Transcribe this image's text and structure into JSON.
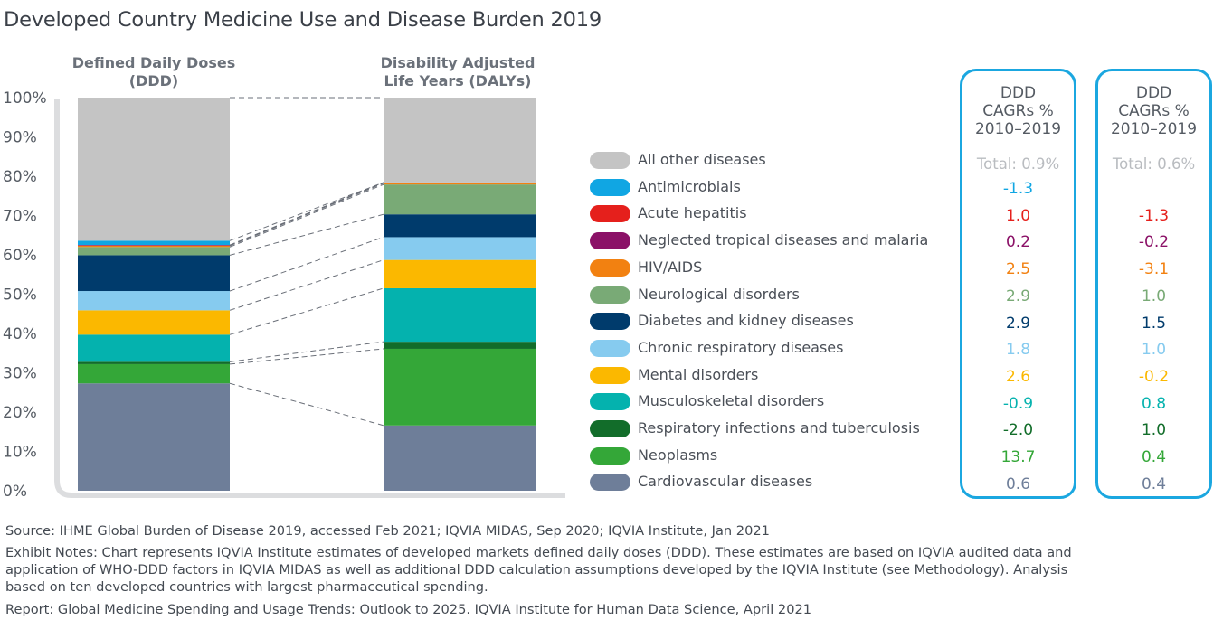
{
  "title": "Developed Country Medicine Use and Disease Burden 2019",
  "chart_data": {
    "type": "bar",
    "stacked": true,
    "normalized": true,
    "categories": [
      "Defined Daily Doses (DDD)",
      "Disability Adjusted Life Years (DALYs)"
    ],
    "ddd_header": [
      "Defined Daily Doses",
      "(DDD)"
    ],
    "daly_header": [
      "Disability Adjusted",
      "Life Years (DALYs)"
    ],
    "ylim": [
      0,
      100
    ],
    "yticks": [
      "0%",
      "10%",
      "20%",
      "30%",
      "40%",
      "50%",
      "60%",
      "70%",
      "80%",
      "90%",
      "100%"
    ],
    "series": [
      {
        "name": "Cardiovascular diseases",
        "color": "#6e7e99",
        "values": [
          27.3,
          16.6
        ]
      },
      {
        "name": "Neoplasms",
        "color": "#34a738",
        "values": [
          4.9,
          19.5
        ]
      },
      {
        "name": "Respiratory infections and tuberculosis",
        "color": "#126d2a",
        "values": [
          0.6,
          1.8
        ]
      },
      {
        "name": "Musculoskeletal disorders",
        "color": "#04b2ae",
        "values": [
          6.9,
          13.6
        ]
      },
      {
        "name": "Mental disorders",
        "color": "#fbb800",
        "values": [
          6.2,
          7.2
        ]
      },
      {
        "name": "Chronic respiratory diseases",
        "color": "#86cbef",
        "values": [
          4.9,
          5.8
        ]
      },
      {
        "name": "Diabetes and kidney diseases",
        "color": "#003b6c",
        "values": [
          9.1,
          5.8
        ]
      },
      {
        "name": "Neurological disorders",
        "color": "#79aa76",
        "values": [
          2.1,
          7.6
        ]
      },
      {
        "name": "HIV/AIDS",
        "color": "#f28111",
        "values": [
          0.3,
          0.3
        ]
      },
      {
        "name": "Neglected tropical diseases and malaria",
        "color": "#8b1167",
        "values": [
          0.1,
          0.1
        ]
      },
      {
        "name": "Acute hepatitis",
        "color": "#e5201c",
        "values": [
          0.1,
          0.1
        ]
      },
      {
        "name": "Antimicrobials",
        "color": "#10a6e3",
        "values": [
          1.1,
          0
        ]
      },
      {
        "name": "All other diseases",
        "color": "#c4c4c4",
        "values": [
          36.4,
          21.6
        ]
      }
    ]
  },
  "legend_order": [
    "All other diseases",
    "Antimicrobials",
    "Acute hepatitis",
    "Neglected tropical diseases and malaria",
    "HIV/AIDS",
    "Neurological disorders",
    "Diabetes and kidney diseases",
    "Chronic respiratory diseases",
    "Mental disorders",
    "Musculoskeletal disorders",
    "Respiratory infections and tuberculosis",
    "Neoplasms",
    "Cardiovascular diseases"
  ],
  "panels": [
    {
      "header": [
        "DDD",
        "CAGRs %",
        "2010–2019"
      ],
      "total": "Total: 0.9%",
      "values": [
        "-1.3",
        "1.0",
        "0.2",
        "2.5",
        "2.9",
        "2.9",
        "1.8",
        "2.6",
        "-0.9",
        "-2.0",
        "13.7",
        "0.6"
      ]
    },
    {
      "header": [
        "DDD",
        "CAGRs %",
        "2010–2019"
      ],
      "total": "Total: 0.6%",
      "values": [
        "",
        "-1.3",
        "-0.2",
        "-3.1",
        "1.0",
        "1.5",
        "1.0",
        "-0.2",
        "0.8",
        "1.0",
        "0.4",
        "0.4"
      ]
    }
  ],
  "notes": {
    "source": "Source: IHME Global Burden of Disease 2019, accessed Feb 2021; IQVIA MIDAS, Sep 2020; IQVIA Institute, Jan 2021",
    "exhibit_1": "Exhibit Notes: Chart represents IQVIA Institute estimates of developed markets defined daily doses (DDD). These estimates are based on IQVIA audited data and",
    "exhibit_2": "application of WHO-DDD factors in IQVIA MIDAS as well as additional DDD calculation assumptions developed by the IQVIA Institute (see Methodology). Analysis",
    "exhibit_3": "based on ten developed countries with largest pharmaceutical spending.",
    "report": "Report: Global Medicine Spending and Usage Trends: Outlook to 2025. IQVIA Institute for Human Data Science, April 2021"
  }
}
